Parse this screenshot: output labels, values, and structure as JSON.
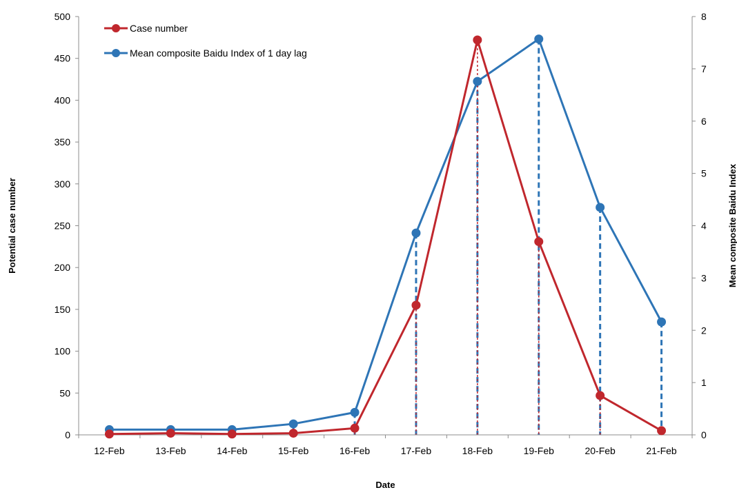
{
  "chart_data": {
    "type": "line",
    "categories": [
      "12-Feb",
      "13-Feb",
      "14-Feb",
      "15-Feb",
      "16-Feb",
      "17-Feb",
      "18-Feb",
      "19-Feb",
      "20-Feb",
      "21-Feb"
    ],
    "xlabel": "Date",
    "ylabel": "Potential  case number",
    "y2label": "Mean composite Baidu Index",
    "ylim": [
      0,
      500
    ],
    "y2lim": [
      0,
      8
    ],
    "yticks": [
      0,
      50,
      100,
      150,
      200,
      250,
      300,
      350,
      400,
      450,
      500
    ],
    "y2ticks": [
      0,
      1,
      2,
      3,
      4,
      5,
      6,
      7,
      8
    ],
    "legend_position": "top-left",
    "series": [
      {
        "name": "Case number",
        "axis": "left",
        "color": "#c0272d",
        "values": [
          1,
          2,
          1,
          2,
          8,
          155,
          472,
          231,
          47,
          5
        ]
      },
      {
        "name": "Mean composite Baidu Index of 1 day lag",
        "axis": "right",
        "color": "#2e75b6",
        "values": [
          0.1,
          0.1,
          0.1,
          0.21,
          0.43,
          3.86,
          6.76,
          7.57,
          4.35,
          2.16
        ]
      }
    ]
  }
}
